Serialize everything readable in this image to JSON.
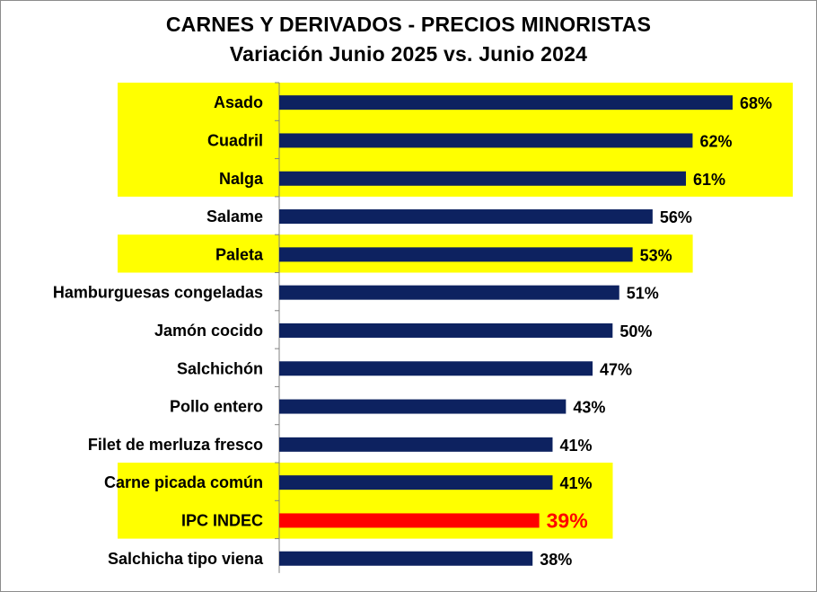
{
  "chart_data": {
    "type": "bar",
    "orientation": "horizontal",
    "title": "CARNES Y DERIVADOS - PRECIOS MINORISTAS",
    "subtitle": "Variación Junio 2025 vs. Junio 2024",
    "categories": [
      "Asado",
      "Cuadril",
      "Nalga",
      "Salame",
      "Paleta",
      "Hamburguesas congeladas",
      "Jamón cocido",
      "Salchichón",
      "Pollo entero",
      "Filet de merluza fresco",
      "Carne picada común",
      "IPC INDEC",
      "Salchicha tipo viena"
    ],
    "values": [
      68,
      62,
      61,
      56,
      53,
      51,
      50,
      47,
      43,
      41,
      41,
      39,
      38
    ],
    "value_labels": [
      "68%",
      "62%",
      "61%",
      "56%",
      "53%",
      "51%",
      "50%",
      "47%",
      "43%",
      "41%",
      "41%",
      "39%",
      "38%"
    ],
    "highlighted_rows": [
      "Asado",
      "Cuadril",
      "Nalga",
      "Paleta",
      "Carne picada común",
      "IPC INDEC"
    ],
    "reference_category": "IPC INDEC",
    "xlim": [
      0,
      70
    ],
    "grid": false,
    "legend": "none",
    "colors": {
      "bar": "#0d2260",
      "reference_bar": "#ff0000",
      "highlight_band": "#ffff00",
      "axis": "#808080"
    }
  }
}
